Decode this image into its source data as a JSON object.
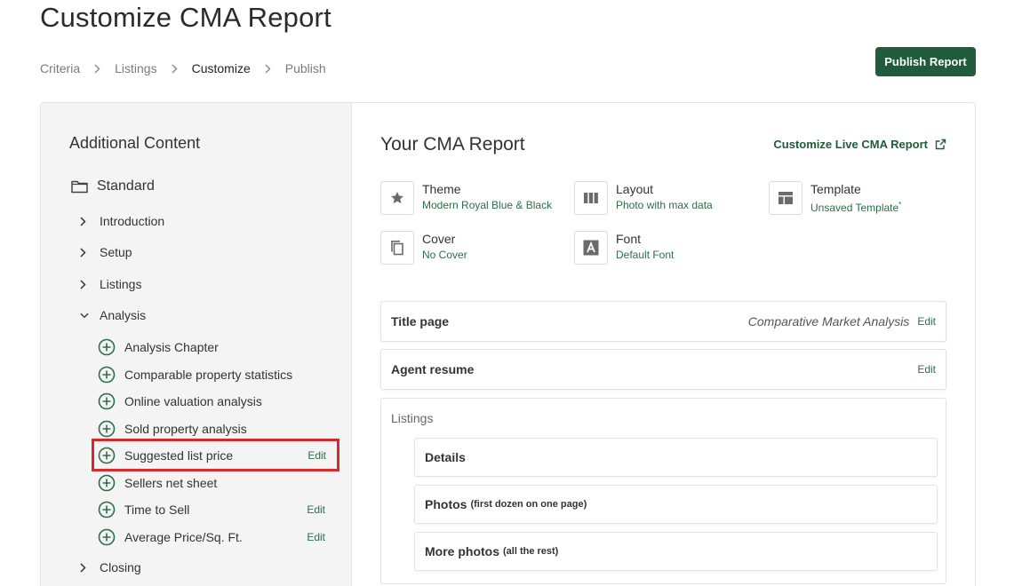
{
  "page_title": "Customize CMA Report",
  "breadcrumb": [
    "Criteria",
    "Listings",
    "Customize",
    "Publish"
  ],
  "breadcrumb_current": "Customize",
  "publish_label": "Publish Report",
  "sidebar": {
    "title": "Additional Content",
    "group": "Standard",
    "sections": [
      {
        "label": "Introduction",
        "expanded": false
      },
      {
        "label": "Setup",
        "expanded": false
      },
      {
        "label": "Listings",
        "expanded": false
      },
      {
        "label": "Analysis",
        "expanded": true
      },
      {
        "label": "Closing",
        "expanded": false
      }
    ],
    "analysis_items": [
      {
        "label": "Analysis Chapter",
        "edit": ""
      },
      {
        "label": "Comparable property statistics",
        "edit": ""
      },
      {
        "label": "Online valuation analysis",
        "edit": ""
      },
      {
        "label": "Sold property analysis",
        "edit": ""
      },
      {
        "label": "Suggested list price",
        "edit": "Edit"
      },
      {
        "label": "Sellers net sheet",
        "edit": ""
      },
      {
        "label": "Time to Sell",
        "edit": "Edit"
      },
      {
        "label": "Average Price/Sq. Ft.",
        "edit": "Edit"
      }
    ]
  },
  "main": {
    "title": "Your CMA Report",
    "live_link": "Customize Live CMA Report",
    "options": {
      "theme": {
        "label": "Theme",
        "value": "Modern Royal Blue & Black"
      },
      "layout": {
        "label": "Layout",
        "value": "Photo with max data"
      },
      "template": {
        "label": "Template",
        "value": "Unsaved Template",
        "mark": "*"
      },
      "cover": {
        "label": "Cover",
        "value": "No Cover"
      },
      "font": {
        "label": "Font",
        "value": "Default Font"
      }
    },
    "title_page": {
      "label": "Title page",
      "value": "Comparative Market Analysis",
      "edit": "Edit"
    },
    "agent_resume": {
      "label": "Agent resume",
      "edit": "Edit"
    },
    "listings": {
      "label": "Listings",
      "details": "Details",
      "photos": "Photos",
      "photos_note": "(first dozen on one page)",
      "more_photos": "More photos",
      "more_photos_note": "(all the rest)"
    }
  },
  "colors": {
    "accent": "#1f5b3c",
    "link": "#2c6e49",
    "highlight": "#d42a2a"
  },
  "icons": {
    "chevron_right": "chevron-right-icon",
    "chevron_down": "chevron-down-icon",
    "folder": "folder-icon",
    "add": "plus-circle-icon",
    "external": "external-link-icon",
    "theme": "star-icon",
    "layout": "columns-icon",
    "template": "template-icon",
    "cover": "copy-icon",
    "font": "font-icon"
  }
}
